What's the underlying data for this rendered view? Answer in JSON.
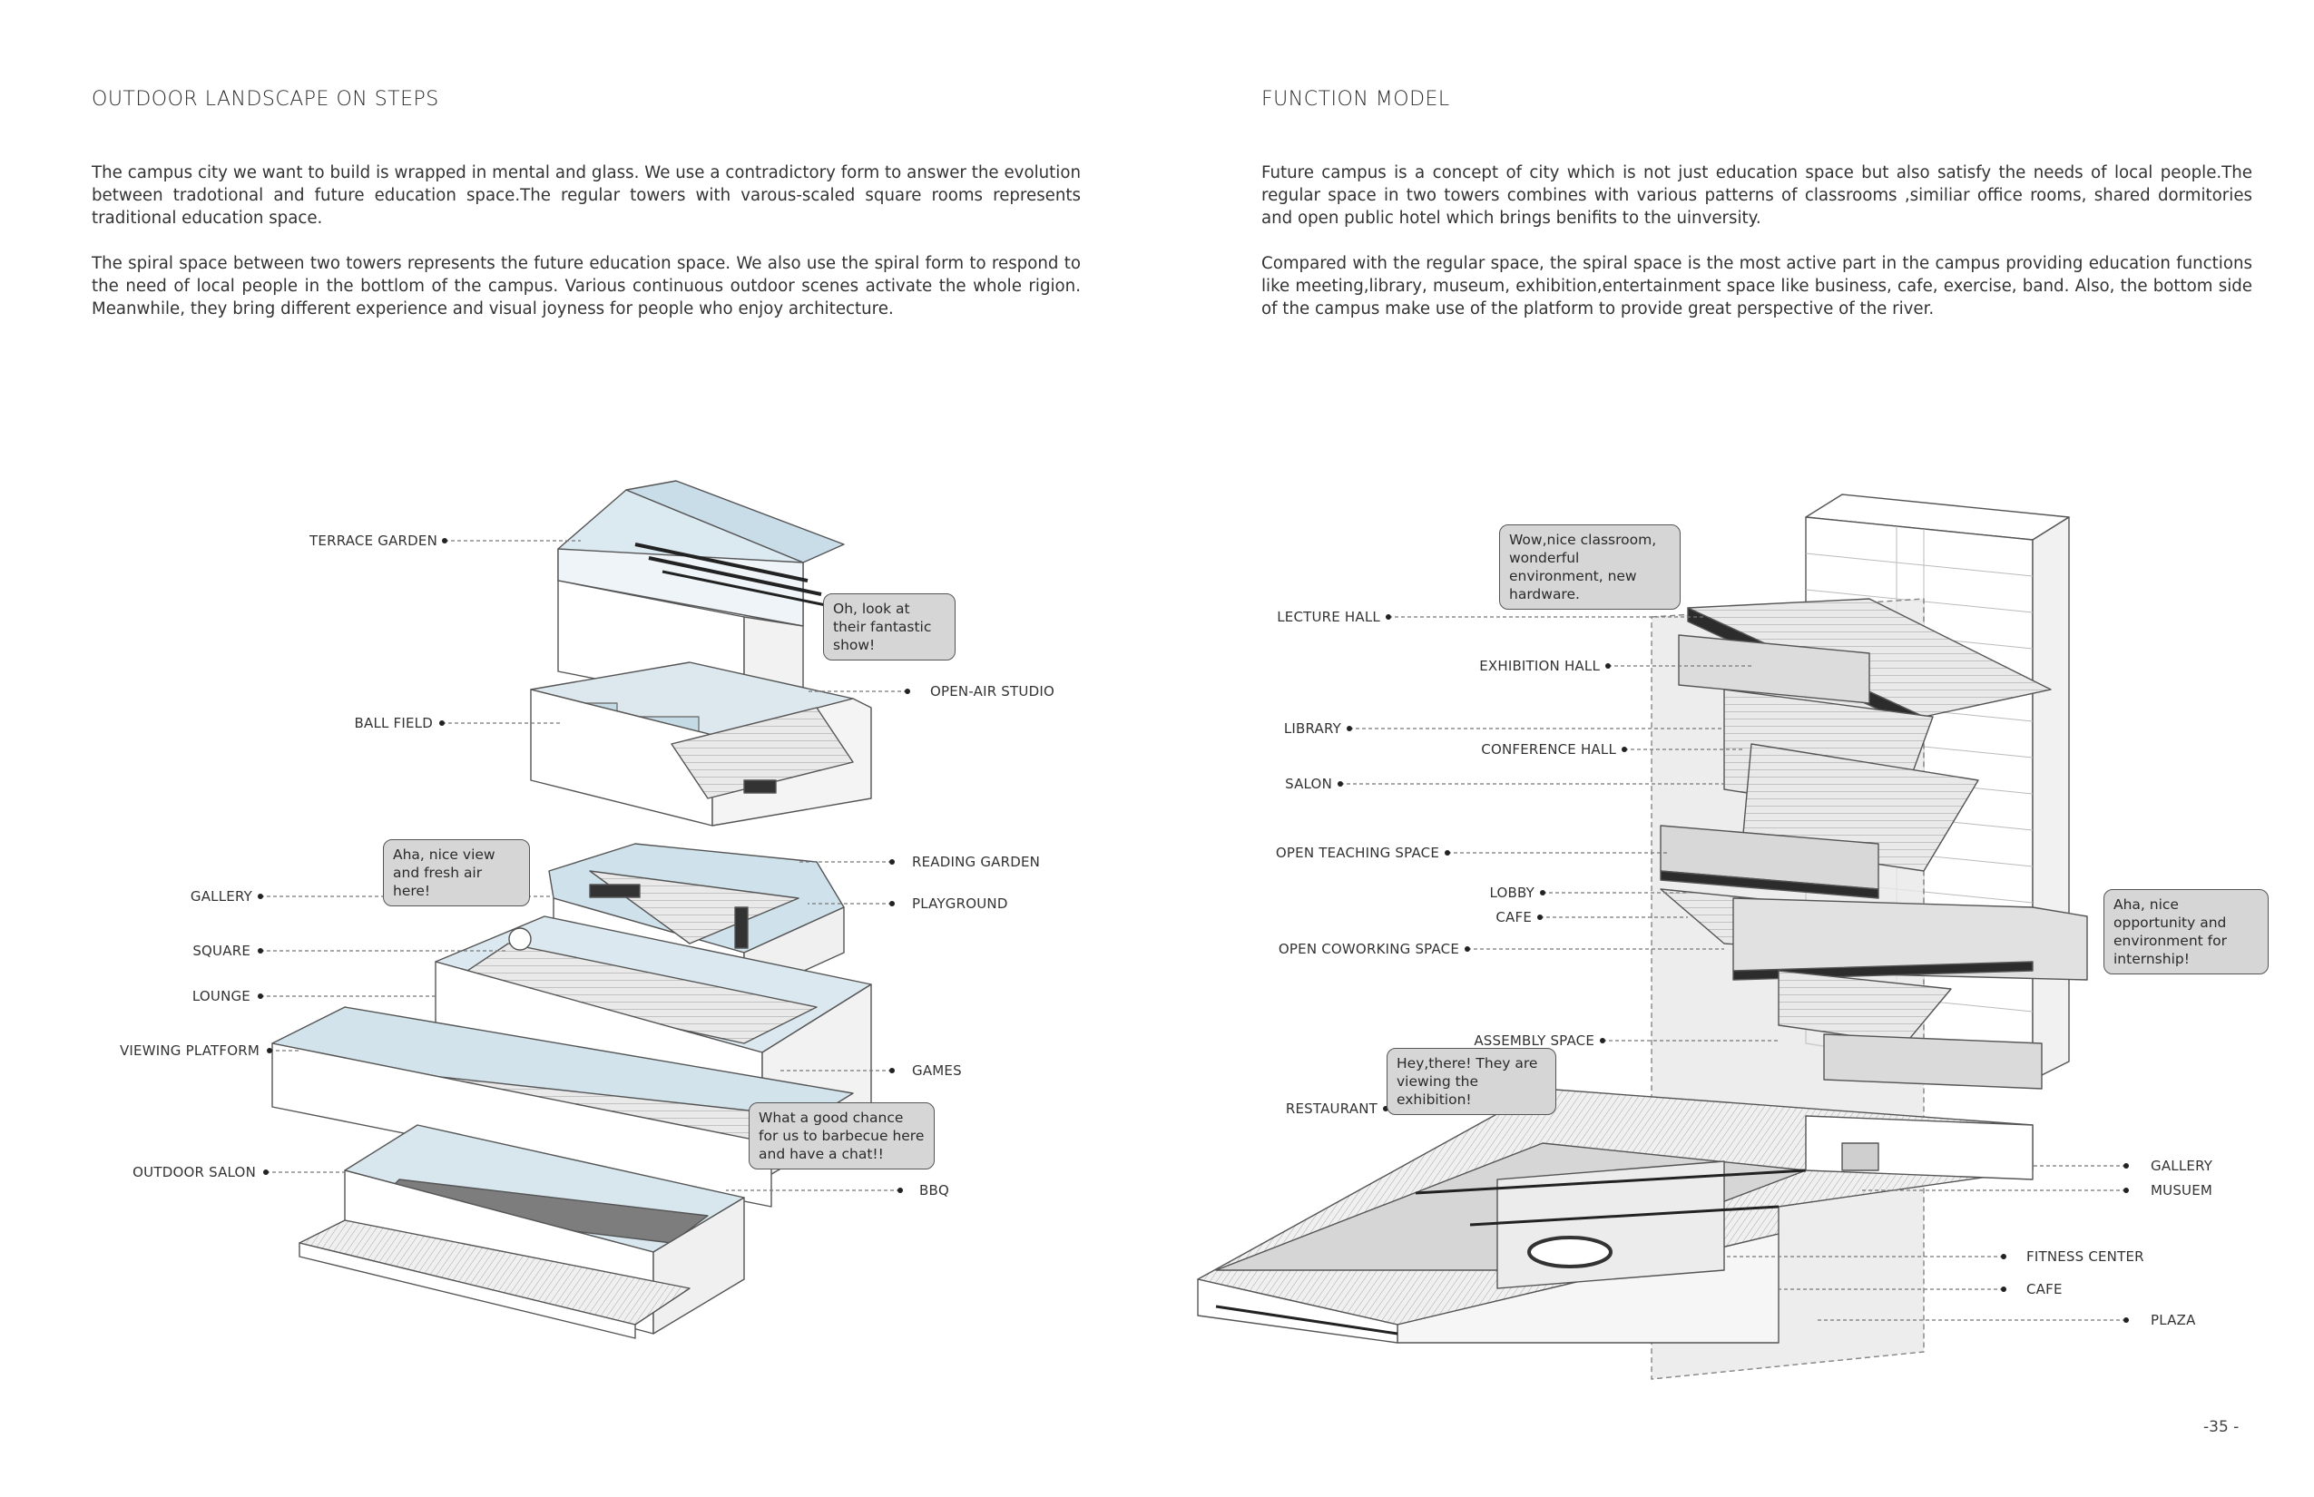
{
  "left": {
    "title": "OUTDOOR LANDSCAPE ON STEPS",
    "paragraphs": [
      "The campus city we want to build is wrapped in mental and glass. We use a contradictory form to answer the evolution between tradotional  and future education space.The regular towers with varous-scaled square rooms represents traditional education space.",
      "The spiral space between two towers represents the future education space. We also use the spiral form to respond to the need of local people in the bottlom of the campus. Various continuous outdoor scenes activate the whole rigion. Meanwhile, they bring different experience and visual joyness for people who enjoy architecture."
    ],
    "labels": {
      "terrace_garden": "TERRACE GARDEN",
      "open_air_studio": "OPEN-AIR STUDIO",
      "ball_field": "BALL FIELD",
      "reading_garden": "READING GARDEN",
      "gallery": "GALLERY",
      "playground": "PLAYGROUND",
      "square": "SQUARE",
      "lounge": "LOUNGE",
      "viewing_platform": "VIEWING PLATFORM",
      "games": "GAMES",
      "outdoor_salon": "OUTDOOR SALON",
      "bbq": "BBQ"
    },
    "bubbles": {
      "show": "Oh, look at their fantastic show!",
      "view": "Aha, nice view and fresh air here!",
      "barbecue": "What a good chance for us to barbecue here and have a chat!!"
    }
  },
  "right": {
    "title": "FUNCTION MODEL",
    "paragraphs": [
      "Future campus is a concept of city which is not just education space but also satisfy the needs of local people.The regular space in two towers combines with various patterns of classrooms ,similiar office rooms, shared dormitories and open public hotel which brings benifits to the uinversity.",
      "Compared with the regular space, the spiral space is the most active part  in the campus providing education functions like meeting,library, museum, exhibition,entertainment space like business, cafe, exercise, band. Also, the bottom side of the campus make use of the platform to provide great perspective of the river."
    ],
    "labels": {
      "lecture_hall": "LECTURE HALL",
      "exhibition_hall": "EXHIBITION HALL",
      "library": "LIBRARY",
      "conference_hall": "CONFERENCE HALL",
      "salon": "SALON",
      "open_teaching_space": "OPEN TEACHING SPACE",
      "lobby": "LOBBY",
      "cafe_upper": "CAFE",
      "open_coworking_space": "OPEN COWORKING SPACE",
      "assembly_space": "ASSEMBLY SPACE",
      "restaurant": "RESTAURANT",
      "gallery": "GALLERY",
      "musuem": "MUSUEM",
      "fitness_center": "FITNESS CENTER",
      "cafe_lower": "CAFE",
      "plaza": "PLAZA"
    },
    "bubbles": {
      "classroom": "Wow,nice classroom, wonderful environment, new hardware.",
      "internship": "Aha, nice opportunity and environment for internship!",
      "exhibition": "Hey,there! They are viewing the exhibition!"
    }
  },
  "page_number": "-35 -",
  "colors": {
    "accent_blue": "#bcd6e4",
    "ink": "#2b2b2b",
    "bubble_fill": "#d6d6d6"
  }
}
